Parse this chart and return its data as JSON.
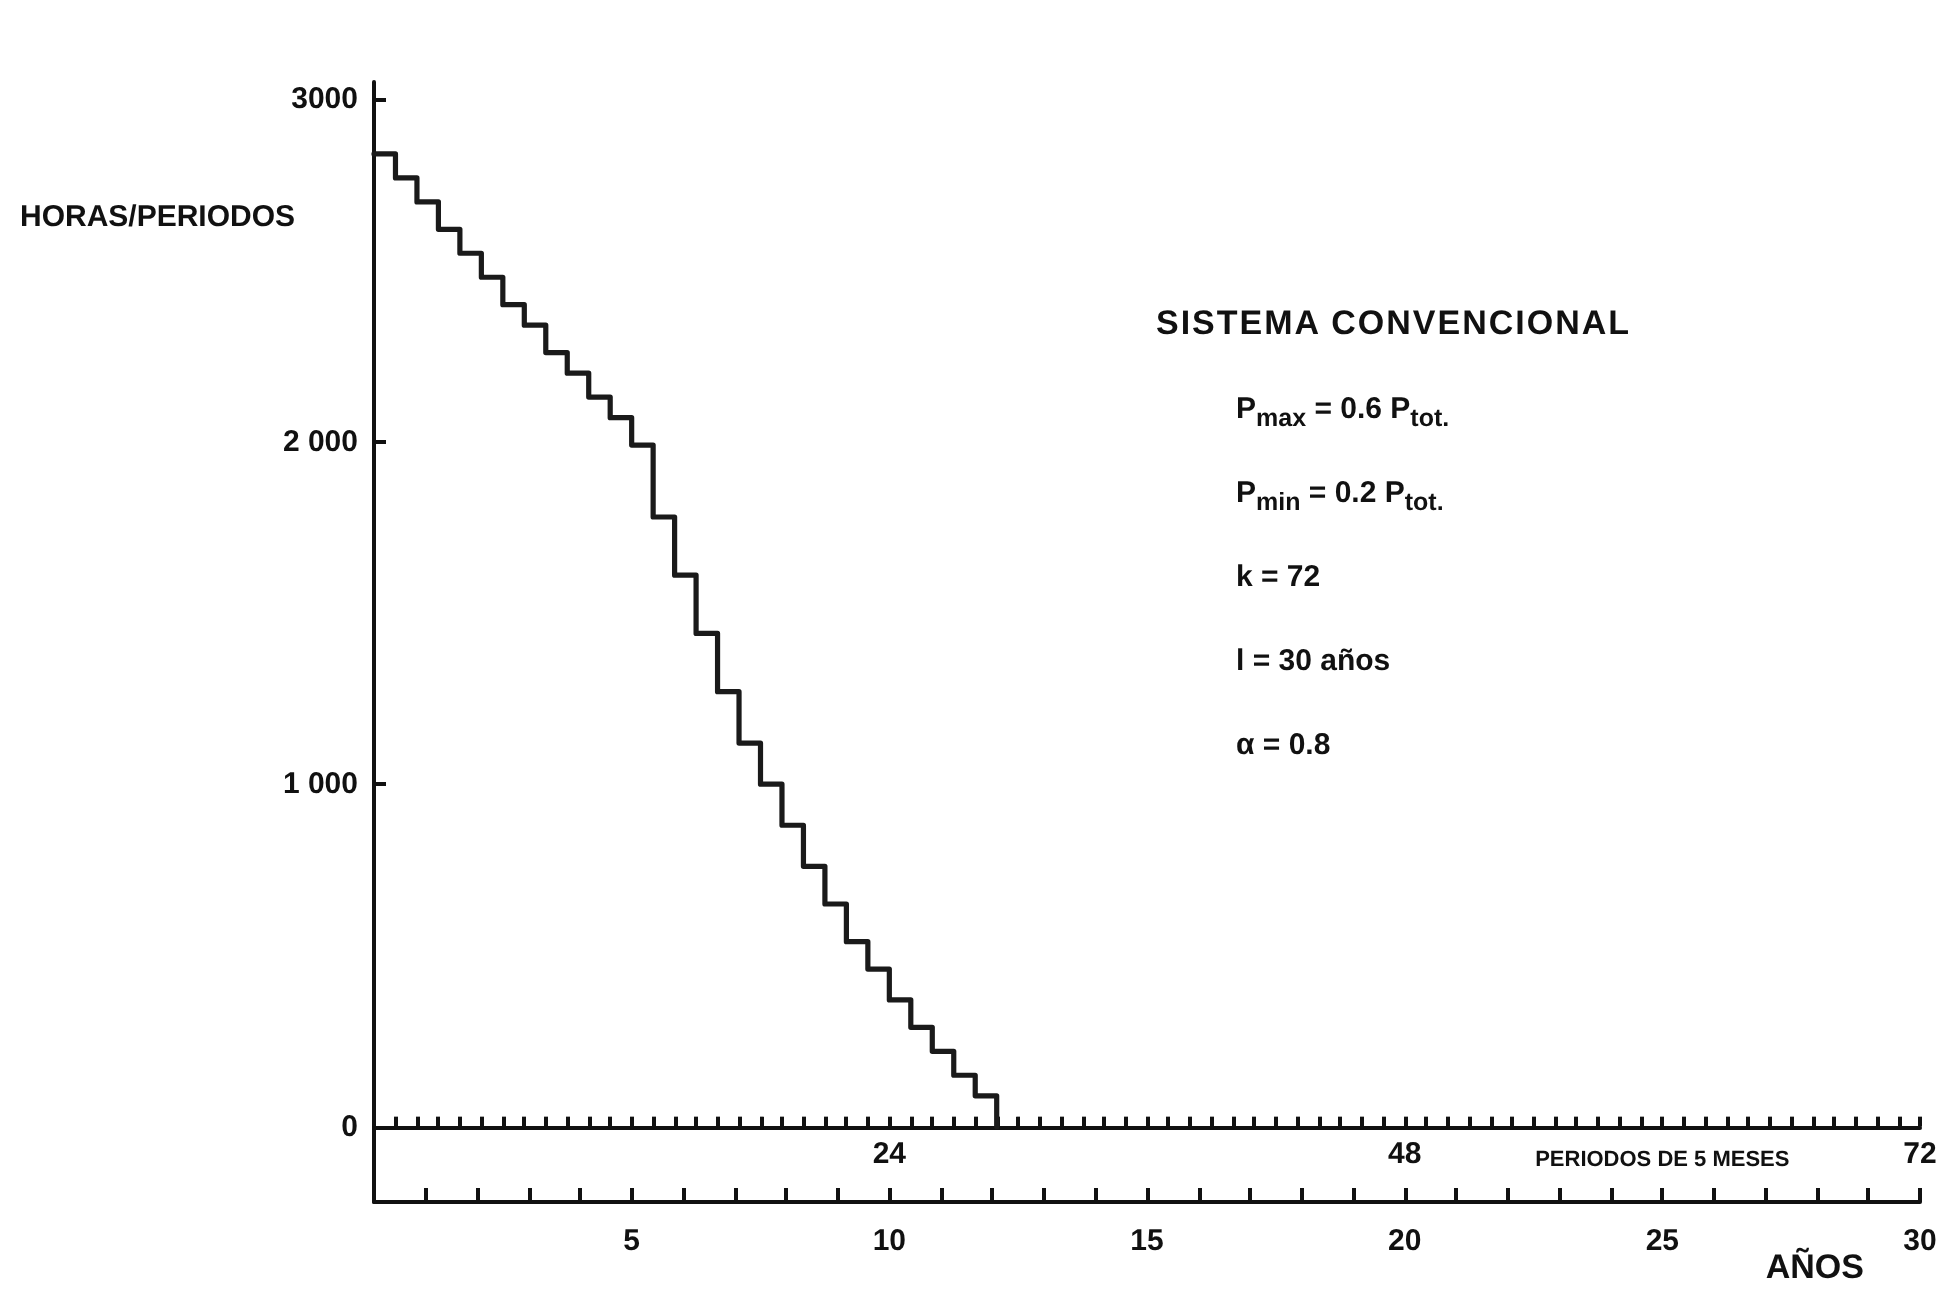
{
  "chart_data": {
    "type": "step",
    "title": "SISTEMA CONVENCIONAL",
    "xlabel": "AÑOS",
    "x2label": "PERIODOS DE 5 MESES",
    "ylabel": "HORAS/PERIODOS",
    "series": [
      {
        "color": "#1a1a1a",
        "axis": "x2",
        "x": [
          0,
          1,
          2,
          3,
          4,
          5,
          6,
          7,
          8,
          9,
          10,
          11,
          12,
          13,
          14,
          15,
          16,
          17,
          18,
          19,
          20,
          21,
          22,
          23,
          24,
          25,
          26,
          27,
          28,
          29
        ],
        "values": [
          2840,
          2770,
          2700,
          2620,
          2550,
          2480,
          2400,
          2340,
          2260,
          2200,
          2130,
          2070,
          1990,
          1780,
          1610,
          1440,
          1270,
          1120,
          1000,
          880,
          760,
          650,
          540,
          460,
          370,
          290,
          220,
          150,
          90,
          0
        ]
      }
    ],
    "xlim": [
      0,
      30
    ],
    "xticks": [
      {
        "value": 1,
        "label": null
      },
      {
        "value": 2,
        "label": null
      },
      {
        "value": 3,
        "label": null
      },
      {
        "value": 4,
        "label": null
      },
      5,
      {
        "value": 6,
        "label": null
      },
      {
        "value": 7,
        "label": null
      },
      {
        "value": 8,
        "label": null
      },
      {
        "value": 9,
        "label": null
      },
      10,
      {
        "value": 11,
        "label": null
      },
      {
        "value": 12,
        "label": null
      },
      {
        "value": 13,
        "label": null
      },
      {
        "value": 14,
        "label": null
      },
      15,
      {
        "value": 16,
        "label": null
      },
      {
        "value": 17,
        "label": null
      },
      {
        "value": 18,
        "label": null
      },
      {
        "value": 19,
        "label": null
      },
      20,
      {
        "value": 21,
        "label": null
      },
      {
        "value": 22,
        "label": null
      },
      {
        "value": 23,
        "label": null
      },
      {
        "value": 24,
        "label": null
      },
      25,
      {
        "value": 26,
        "label": null
      },
      {
        "value": 27,
        "label": null
      },
      {
        "value": 28,
        "label": null
      },
      {
        "value": 29,
        "label": null
      },
      30
    ],
    "x2lim": [
      0,
      72
    ],
    "x2ticks": [
      {
        "value": 1,
        "label": null
      },
      {
        "value": 2,
        "label": null
      },
      {
        "value": 3,
        "label": null
      },
      {
        "value": 4,
        "label": null
      },
      {
        "value": 5,
        "label": null
      },
      {
        "value": 6,
        "label": null
      },
      {
        "value": 7,
        "label": null
      },
      {
        "value": 8,
        "label": null
      },
      {
        "value": 9,
        "label": null
      },
      {
        "value": 10,
        "label": null
      },
      {
        "value": 11,
        "label": null
      },
      {
        "value": 12,
        "label": null
      },
      {
        "value": 13,
        "label": null
      },
      {
        "value": 14,
        "label": null
      },
      {
        "value": 15,
        "label": null
      },
      {
        "value": 16,
        "label": null
      },
      {
        "value": 17,
        "label": null
      },
      {
        "value": 18,
        "label": null
      },
      {
        "value": 19,
        "label": null
      },
      {
        "value": 20,
        "label": null
      },
      {
        "value": 21,
        "label": null
      },
      {
        "value": 22,
        "label": null
      },
      {
        "value": 23,
        "label": null
      },
      24,
      {
        "value": 25,
        "label": null
      },
      {
        "value": 26,
        "label": null
      },
      {
        "value": 27,
        "label": null
      },
      {
        "value": 28,
        "label": null
      },
      {
        "value": 29,
        "label": null
      },
      {
        "value": 30,
        "label": null
      },
      {
        "value": 31,
        "label": null
      },
      {
        "value": 32,
        "label": null
      },
      {
        "value": 33,
        "label": null
      },
      {
        "value": 34,
        "label": null
      },
      {
        "value": 35,
        "label": null
      },
      {
        "value": 36,
        "label": null
      },
      {
        "value": 37,
        "label": null
      },
      {
        "value": 38,
        "label": null
      },
      {
        "value": 39,
        "label": null
      },
      {
        "value": 40,
        "label": null
      },
      {
        "value": 41,
        "label": null
      },
      {
        "value": 42,
        "label": null
      },
      {
        "value": 43,
        "label": null
      },
      {
        "value": 44,
        "label": null
      },
      {
        "value": 45,
        "label": null
      },
      {
        "value": 46,
        "label": null
      },
      {
        "value": 47,
        "label": null
      },
      48,
      {
        "value": 49,
        "label": null
      },
      {
        "value": 50,
        "label": null
      },
      {
        "value": 51,
        "label": null
      },
      {
        "value": 52,
        "label": null
      },
      {
        "value": 53,
        "label": null
      },
      {
        "value": 54,
        "label": null
      },
      {
        "value": 55,
        "label": null
      },
      {
        "value": 56,
        "label": null
      },
      {
        "value": 57,
        "label": null
      },
      {
        "value": 58,
        "label": null
      },
      {
        "value": 59,
        "label": null
      },
      {
        "value": 60,
        "label": null
      },
      {
        "value": 61,
        "label": null
      },
      {
        "value": 62,
        "label": null
      },
      {
        "value": 63,
        "label": null
      },
      {
        "value": 64,
        "label": null
      },
      {
        "value": 65,
        "label": null
      },
      {
        "value": 66,
        "label": null
      },
      {
        "value": 67,
        "label": null
      },
      {
        "value": 68,
        "label": null
      },
      {
        "value": 69,
        "label": null
      },
      {
        "value": 70,
        "label": null
      },
      {
        "value": 71,
        "label": null
      },
      72
    ],
    "ylim": [
      -220,
      3050
    ],
    "yticks": [
      0,
      {
        "value": 1000,
        "label": "1 000"
      },
      {
        "value": 2000,
        "label": "2 000"
      },
      3000
    ],
    "annotations": [
      "P$_{max}$ = 0.6 P$_{tot.}$",
      "P$_{min}$ = 0.2 P$_{tot.}$",
      "k = 72",
      "l = 30 años",
      "α = 0.8"
    ]
  }
}
